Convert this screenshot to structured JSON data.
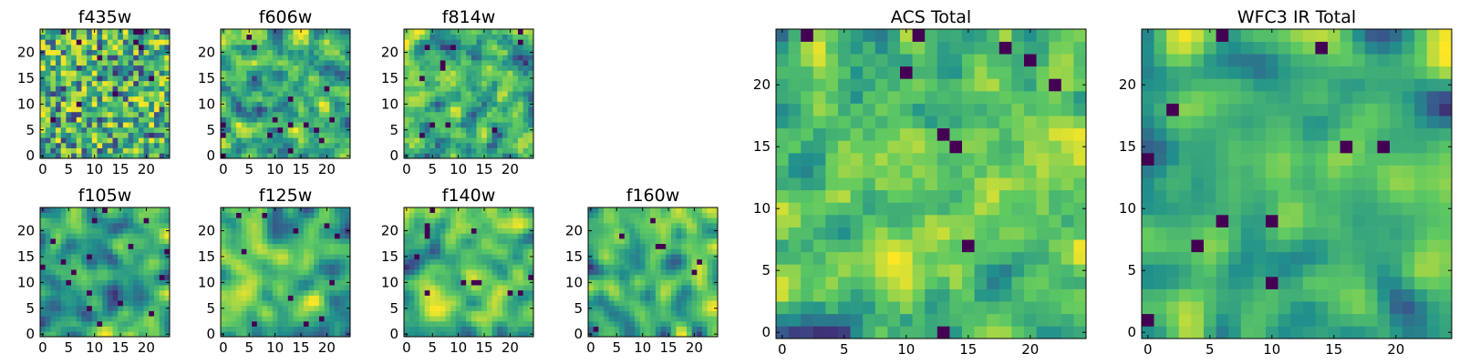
{
  "figure": {
    "colormap": [
      "#440154",
      "#3b528b",
      "#21918c",
      "#5ec962",
      "#fde725"
    ],
    "panels": [
      {
        "title": "f435w",
        "seed": 11,
        "corr": 0.15,
        "xticks": [
          0,
          5,
          10,
          15,
          20
        ],
        "yticks": [
          0,
          5,
          10,
          15,
          20
        ]
      },
      {
        "title": "f606w",
        "seed": 23,
        "corr": 0.25,
        "xticks": [
          0,
          5,
          10,
          15,
          20
        ],
        "yticks": [
          0,
          5,
          10,
          15,
          20
        ]
      },
      {
        "title": "f814w",
        "seed": 37,
        "corr": 0.2,
        "xticks": [
          0,
          5,
          10,
          15,
          20
        ],
        "yticks": [
          0,
          5,
          10,
          15,
          20
        ]
      },
      {
        "title": "f105w",
        "seed": 41,
        "corr": 0.6,
        "xticks": [
          0,
          5,
          10,
          15,
          20
        ],
        "yticks": [
          0,
          5,
          10,
          15,
          20
        ]
      },
      {
        "title": "f125w",
        "seed": 53,
        "corr": 0.6,
        "xticks": [
          0,
          5,
          10,
          15,
          20
        ],
        "yticks": [
          0,
          5,
          10,
          15,
          20
        ]
      },
      {
        "title": "f140w",
        "seed": 67,
        "corr": 0.6,
        "xticks": [
          0,
          5,
          10,
          15,
          20
        ],
        "yticks": [
          0,
          5,
          10,
          15,
          20
        ]
      },
      {
        "title": "f160w",
        "seed": 79,
        "corr": 0.6,
        "xticks": [
          0,
          5,
          10,
          15,
          20
        ],
        "yticks": [
          0,
          5,
          10,
          15,
          20
        ]
      },
      {
        "title": "ACS Total",
        "seed": 97,
        "corr": 0.25,
        "xticks": [
          0,
          5,
          10,
          15,
          20
        ],
        "yticks": [
          0,
          5,
          10,
          15,
          20
        ]
      },
      {
        "title": "WFC3 IR Total",
        "seed": 113,
        "corr": 0.8,
        "xticks": [
          0,
          5,
          10,
          15,
          20
        ],
        "yticks": [
          0,
          5,
          10,
          15,
          20
        ]
      }
    ]
  },
  "chart_data": [
    {
      "type": "heatmap",
      "title": "f435w",
      "xlim": [
        -0.5,
        24.5
      ],
      "ylim": [
        -0.5,
        24.5
      ],
      "grid": false,
      "colormap": "viridis"
    },
    {
      "type": "heatmap",
      "title": "f606w",
      "xlim": [
        -0.5,
        24.5
      ],
      "ylim": [
        -0.5,
        24.5
      ],
      "grid": false,
      "colormap": "viridis"
    },
    {
      "type": "heatmap",
      "title": "f814w",
      "xlim": [
        -0.5,
        24.5
      ],
      "ylim": [
        -0.5,
        24.5
      ],
      "grid": false,
      "colormap": "viridis"
    },
    {
      "type": "heatmap",
      "title": "f105w",
      "xlim": [
        -0.5,
        24.5
      ],
      "ylim": [
        -0.5,
        24.5
      ],
      "grid": false,
      "colormap": "viridis"
    },
    {
      "type": "heatmap",
      "title": "f125w",
      "xlim": [
        -0.5,
        24.5
      ],
      "ylim": [
        -0.5,
        24.5
      ],
      "grid": false,
      "colormap": "viridis"
    },
    {
      "type": "heatmap",
      "title": "f140w",
      "xlim": [
        -0.5,
        24.5
      ],
      "ylim": [
        -0.5,
        24.5
      ],
      "grid": false,
      "colormap": "viridis"
    },
    {
      "type": "heatmap",
      "title": "f160w",
      "xlim": [
        -0.5,
        24.5
      ],
      "ylim": [
        -0.5,
        24.5
      ],
      "grid": false,
      "colormap": "viridis"
    },
    {
      "type": "heatmap",
      "title": "ACS Total",
      "xlim": [
        -0.5,
        24.5
      ],
      "ylim": [
        -0.5,
        24.5
      ],
      "grid": false,
      "colormap": "viridis"
    },
    {
      "type": "heatmap",
      "title": "WFC3 IR Total",
      "xlim": [
        -0.5,
        24.5
      ],
      "ylim": [
        -0.5,
        24.5
      ],
      "grid": false,
      "colormap": "viridis"
    }
  ]
}
